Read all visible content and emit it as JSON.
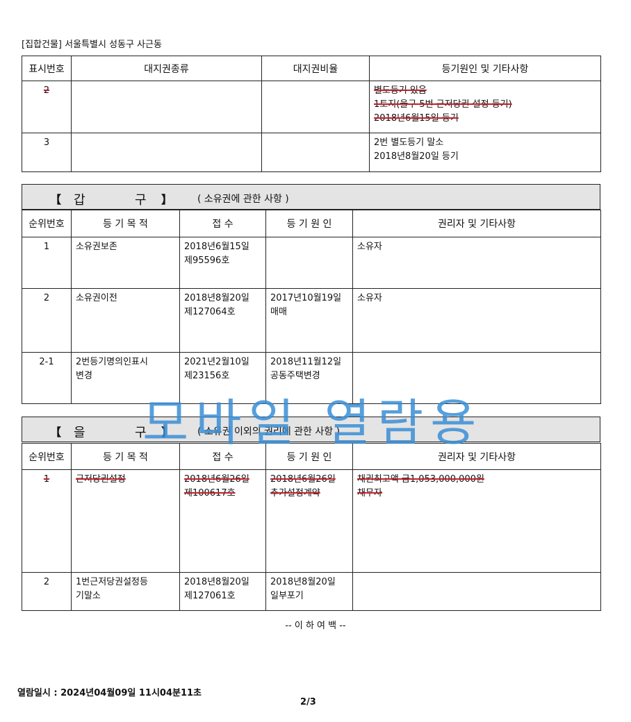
{
  "address_line": "[집합건물] 서울특별시 성동구 사근동",
  "land_table": {
    "headers": [
      "표시번호",
      "대지권종류",
      "대지권비율",
      "등기원인 및 기타사항"
    ],
    "rows": [
      {
        "no": "2",
        "type": "",
        "ratio": "",
        "notes": "별도등기 있음\n1토지(을구 5번 근저당권 설정 등기)\n2018년6월15일 등기",
        "struck": true
      },
      {
        "no": "3",
        "type": "",
        "ratio": "",
        "notes": "2번 별도등기 말소\n2018년8월20일 등기",
        "struck": false
      }
    ]
  },
  "gapgu": {
    "bracket_open": "【",
    "name1": "갑",
    "name2": "구",
    "bracket_close": "】",
    "desc": "( 소유권에 관한 사항 )",
    "headers": [
      "순위번호",
      "등 기 목 적",
      "접  수",
      "등 기 원 인",
      "권리자 및 기타사항"
    ],
    "rows": [
      {
        "no": "1",
        "purpose": "소유권보존",
        "receipt": "2018년6월15일\n제95596호",
        "cause": "",
        "holder": "소유자"
      },
      {
        "no": "2",
        "purpose": "소유권이전",
        "receipt": "2018년8월20일\n제127064호",
        "cause": "2017년10월19일\n매매",
        "holder": "소유자"
      },
      {
        "no": "2-1",
        "purpose": "2번등기명의인표시\n변경",
        "receipt": "2021년2월10일\n제23156호",
        "cause": "2018년11월12일\n공동주택변경",
        "holder": ""
      }
    ]
  },
  "eulgu": {
    "bracket_open": "【",
    "name1": "을",
    "name2": "구",
    "bracket_close": "】",
    "desc": "( 소유권 이외의 권리에 관한 사항 )",
    "headers": [
      "순위번호",
      "등 기 목 적",
      "접  수",
      "등 기 원 인",
      "권리자 및 기타사항"
    ],
    "rows": [
      {
        "no": "1",
        "purpose": "근저당권설정",
        "receipt": "2018년6월26일\n제100617호",
        "cause": "2018년6월26일\n추가설정계약",
        "holder": "채권최고액  금1,053,000,000원\n채무자",
        "struck": true
      },
      {
        "no": "2",
        "purpose": "1번근저당권설정등\n기말소",
        "receipt": "2018년8월20일\n제127061호",
        "cause": "2018년8월20일\n일부포기",
        "holder": "",
        "struck": false
      }
    ]
  },
  "end_mark": "-- 이  하  여  백 --",
  "watermark": "모바일 열람용",
  "view_datetime": "열람일시 : 2024년04월09일 11시04분11초",
  "page_number": "2/3",
  "colors": {
    "strike": "#c0202a",
    "watermark": "#3a8fd6",
    "section_bg": "#e4e4e4"
  }
}
